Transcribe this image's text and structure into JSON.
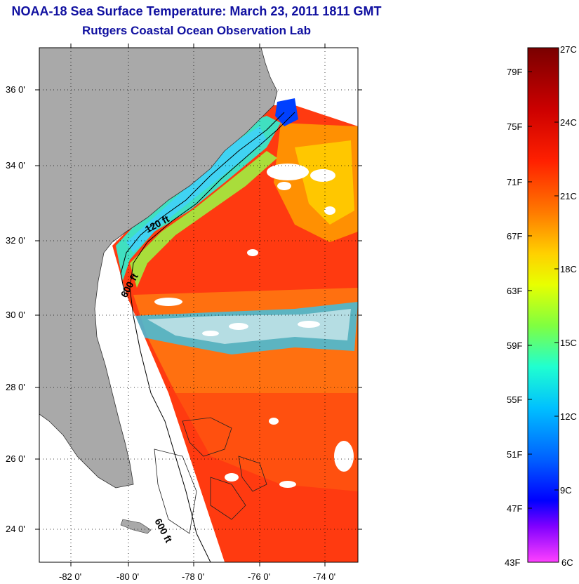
{
  "header": {
    "title": "NOAA-18 Sea Surface Temperature:  March 23, 2011 1811 GMT",
    "subtitle": "Rutgers Coastal Ocean Observation Lab"
  },
  "map": {
    "lat_labels": [
      "36 0'",
      "34 0'",
      "32 0'",
      "30 0'",
      "28 0'",
      "26 0'",
      "24 0'"
    ],
    "lon_labels": [
      "-82 0'",
      "-80 0'",
      "-78 0'",
      "-76 0'",
      "-74 0'"
    ],
    "contour_labels": [
      "120 ft",
      "600 ft",
      "600 ft"
    ],
    "colors": {
      "land": "#a9a9a9",
      "no_data": "#ffffff"
    }
  },
  "colorbar": {
    "fahrenheit": [
      "79F",
      "75F",
      "71F",
      "67F",
      "63F",
      "59F",
      "55F",
      "51F",
      "47F",
      "43F"
    ],
    "celsius": [
      "27C",
      "24C",
      "21C",
      "18C",
      "15C",
      "12C",
      "9C",
      "6C"
    ],
    "stops": [
      "#7a0000",
      "#cc0000",
      "#ff2000",
      "#ff7a00",
      "#ffd000",
      "#e8ff00",
      "#80ff40",
      "#20ffd0",
      "#00c0ff",
      "#0060ff",
      "#0000ff",
      "#8000ff",
      "#ff40ff"
    ]
  }
}
